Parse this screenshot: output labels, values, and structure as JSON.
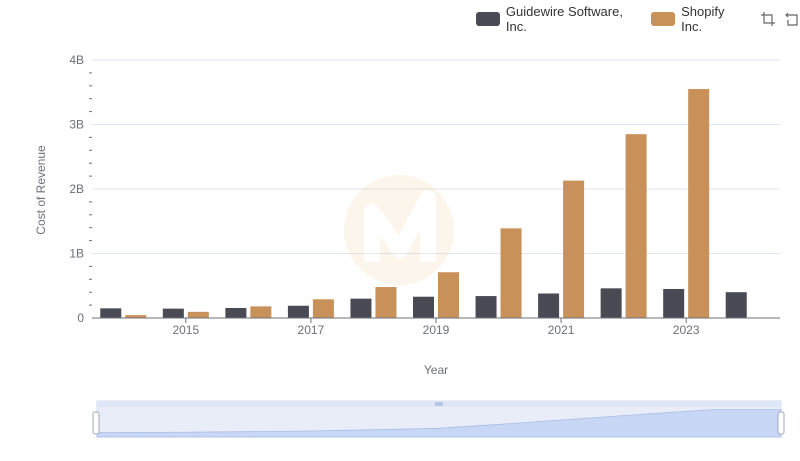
{
  "legend": {
    "items": [
      {
        "label": "Guidewire Software, Inc.",
        "color": "#4a4a55"
      },
      {
        "label": "Shopify Inc.",
        "color": "#c8915a"
      }
    ]
  },
  "toolbox": {
    "icons": [
      "zoom-icon",
      "restore-icon"
    ]
  },
  "chart_data": {
    "type": "bar",
    "title": "",
    "xlabel": "Year",
    "ylabel": "Cost of Revenue",
    "x": [
      2014,
      2015,
      2016,
      2017,
      2018,
      2019,
      2020,
      2021,
      2022,
      2023,
      2024
    ],
    "x_tick_labels": [
      "2015",
      "2017",
      "2019",
      "2021",
      "2023"
    ],
    "y_tick_labels": [
      "0",
      "1B",
      "2B",
      "3B",
      "4B"
    ],
    "ylim": [
      0,
      4000000000
    ],
    "grid": true,
    "legend_position": "top-right",
    "series": [
      {
        "name": "Guidewire Software, Inc.",
        "color": "#4a4a55",
        "values": [
          150000000,
          145000000,
          155000000,
          190000000,
          300000000,
          330000000,
          340000000,
          380000000,
          460000000,
          450000000,
          400000000
        ]
      },
      {
        "name": "Shopify Inc.",
        "color": "#c8915a",
        "values": [
          45000000,
          95000000,
          180000000,
          290000000,
          480000000,
          710000000,
          1390000000,
          2130000000,
          2850000000,
          3550000000,
          null
        ]
      }
    ],
    "data_zoom": {
      "start": 0,
      "end": 100
    }
  }
}
